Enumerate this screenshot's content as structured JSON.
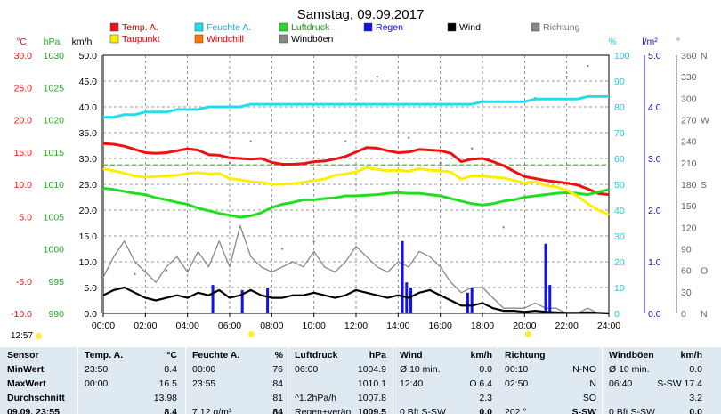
{
  "title": "Samstag, 09.09.2017",
  "clock": "12:57",
  "legend": [
    {
      "label": "Temp. A.",
      "color": "#ee1111"
    },
    {
      "label": "Feuchte A.",
      "color": "#22ddee"
    },
    {
      "label": "Luftdruck",
      "color": "#22dd22"
    },
    {
      "label": "Regen",
      "color": "#1111ee"
    },
    {
      "label": "Wind",
      "color": "#000000"
    },
    {
      "label": "Richtung",
      "color": "#888888"
    },
    {
      "label": "Taupunkt",
      "color": "#ffee00"
    },
    {
      "label": "Windchill",
      "color": "#ff7700"
    },
    {
      "label": "Windböen",
      "color": "#888888"
    }
  ],
  "axes": {
    "temp": {
      "unit": "°C",
      "color": "#ee1111",
      "ticks": [
        "30.0",
        "25.0",
        "20.0",
        "15.0",
        "10.0",
        "5.0",
        "-5.0",
        "-10.0"
      ]
    },
    "pressure": {
      "unit": "hPa",
      "color": "#22aa22",
      "ticks": [
        "1030",
        "1025",
        "1020",
        "1015",
        "1010",
        "1005",
        "1000",
        "995",
        "990"
      ]
    },
    "wind": {
      "unit": "km/h",
      "color": "#000000",
      "ticks": [
        "50.0",
        "45.0",
        "40.0",
        "35.0",
        "30.0",
        "25.0",
        "20.0",
        "15.0",
        "10.0",
        "5.0",
        "0.0"
      ]
    },
    "humidity": {
      "unit": "%",
      "color": "#22ccdd",
      "ticks": [
        "100",
        "90",
        "80",
        "70",
        "60",
        "50",
        "40",
        "30",
        "20",
        "10",
        "0"
      ]
    },
    "rain": {
      "unit": "l/m²",
      "color": "#1111cc",
      "ticks": [
        "5.0",
        "4.0",
        "3.0",
        "2.0",
        "1.0",
        "0.0"
      ]
    },
    "direction": {
      "unit": "°",
      "color": "#666666",
      "ticks": [
        "360",
        "330",
        "300",
        "270",
        "240",
        "210",
        "180",
        "150",
        "120",
        "90",
        "60",
        "30",
        "0"
      ],
      "labels": [
        "N",
        "",
        "",
        "W",
        "",
        "",
        "S",
        "",
        "",
        "",
        "O",
        "",
        "N"
      ]
    },
    "x": {
      "ticks": [
        "00:00",
        "02:00",
        "04:00",
        "06:00",
        "08:00",
        "10:00",
        "12:00",
        "14:00",
        "16:00",
        "18:00",
        "20:00",
        "22:00",
        "24:00"
      ]
    }
  },
  "chart_data": {
    "type": "line",
    "x_hours": [
      0,
      0.5,
      1,
      1.5,
      2,
      2.5,
      3,
      3.5,
      4,
      4.5,
      5,
      5.5,
      6,
      6.5,
      7,
      7.5,
      8,
      8.5,
      9,
      9.5,
      10,
      10.5,
      11,
      11.5,
      12,
      12.5,
      13,
      13.5,
      14,
      14.5,
      15,
      15.5,
      16,
      16.5,
      17,
      17.5,
      18,
      18.5,
      19,
      19.5,
      20,
      20.5,
      21,
      21.5,
      22,
      22.5,
      23,
      23.5,
      24
    ],
    "series": [
      {
        "name": "Temp. A.",
        "axis": "temp",
        "color": "#ee1111",
        "values": [
          16.3,
          16.2,
          15.9,
          15.4,
          14.9,
          14.8,
          14.9,
          15.2,
          15.5,
          15.3,
          14.6,
          14.5,
          14.1,
          14.0,
          13.9,
          14.0,
          13.4,
          13.1,
          13.1,
          13.2,
          13.5,
          13.6,
          13.9,
          14.3,
          15.0,
          15.7,
          15.6,
          15.2,
          14.9,
          15.0,
          15.4,
          15.3,
          15.2,
          14.8,
          13.5,
          13.9,
          14.0,
          13.5,
          12.9,
          12.0,
          11.2,
          10.9,
          10.6,
          10.4,
          10.2,
          9.9,
          9.3,
          8.6,
          8.4
        ]
      },
      {
        "name": "Feuchte A.",
        "axis": "humidity",
        "color": "#22ddee",
        "values": [
          76,
          76,
          77,
          77,
          78,
          78,
          78,
          79,
          79,
          79,
          80,
          80,
          80,
          80,
          81,
          81,
          81,
          81,
          81,
          81,
          81,
          81,
          81,
          81,
          81,
          81,
          81,
          81,
          81,
          81,
          81,
          81,
          81,
          81,
          81,
          81,
          82,
          82,
          82,
          82,
          82,
          83,
          83,
          83,
          83,
          83,
          84,
          84,
          84
        ]
      },
      {
        "name": "Luftdruck",
        "axis": "pressure",
        "color": "#22dd22",
        "values": [
          1009.4,
          1009.2,
          1008.9,
          1008.6,
          1008.4,
          1007.9,
          1007.6,
          1007.2,
          1006.9,
          1006.3,
          1005.9,
          1005.5,
          1005.2,
          1004.9,
          1005.1,
          1005.6,
          1006.4,
          1006.9,
          1007.2,
          1007.6,
          1007.6,
          1007.8,
          1007.9,
          1008.2,
          1008.2,
          1008.3,
          1008.4,
          1008.6,
          1008.7,
          1008.6,
          1008.6,
          1008.4,
          1008.2,
          1007.8,
          1007.4,
          1007.0,
          1006.8,
          1007.0,
          1007.4,
          1007.6,
          1008.0,
          1008.2,
          1008.4,
          1008.6,
          1008.7,
          1008.6,
          1008.4,
          1008.8,
          1009.2
        ]
      },
      {
        "name": "Taupunkt",
        "axis": "temp",
        "color": "#ffee00",
        "values": [
          12.4,
          12.1,
          11.7,
          11.3,
          11.1,
          11.2,
          11.3,
          11.4,
          11.7,
          11.8,
          11.6,
          11.7,
          10.9,
          10.7,
          10.4,
          10.3,
          10.0,
          10.0,
          10.1,
          10.3,
          10.6,
          10.8,
          11.4,
          11.6,
          11.9,
          12.6,
          12.3,
          12.1,
          12.2,
          12.0,
          12.4,
          12.2,
          12.1,
          11.9,
          10.8,
          11.3,
          11.3,
          11.1,
          11.0,
          10.6,
          10.2,
          10.4,
          9.8,
          9.6,
          9.1,
          8.2,
          7.0,
          6.0,
          5.3
        ]
      },
      {
        "name": "Wind",
        "axis": "wind",
        "color": "#000000",
        "values": [
          3.5,
          4.5,
          5.0,
          4.0,
          3.0,
          2.5,
          3.0,
          3.5,
          3.0,
          4.0,
          3.5,
          4.5,
          3.0,
          3.5,
          4.5,
          3.5,
          3.0,
          3.0,
          3.5,
          3.5,
          4.0,
          3.5,
          3.0,
          3.5,
          4.5,
          4.0,
          3.5,
          3.0,
          3.5,
          3.0,
          4.0,
          4.5,
          3.5,
          2.5,
          1.5,
          1.5,
          2.0,
          1.0,
          0.5,
          0.5,
          0.3,
          0.5,
          0.3,
          0.2,
          0.1,
          0.1,
          0.2,
          0.1,
          0.0
        ]
      },
      {
        "name": "Windböen",
        "axis": "wind",
        "color": "#888888",
        "values": [
          7,
          11,
          14,
          10,
          8,
          6,
          9,
          11,
          8,
          12,
          9,
          14,
          9,
          17,
          11,
          9,
          8,
          9,
          10,
          9,
          12,
          9,
          8,
          10,
          13,
          11,
          9,
          8,
          10,
          9,
          12,
          11,
          9,
          6,
          4,
          5,
          5,
          3,
          1,
          1,
          1,
          2,
          1,
          1,
          0,
          0,
          1,
          0,
          0
        ]
      }
    ],
    "threshold_line": {
      "axis": "temp",
      "value": 13.0,
      "color": "#22cc22"
    },
    "rain_bars": [
      {
        "hour": 5.2,
        "value": 0.55
      },
      {
        "hour": 6.6,
        "value": 0.45
      },
      {
        "hour": 7.8,
        "value": 0.5
      },
      {
        "hour": 14.2,
        "value": 1.4
      },
      {
        "hour": 14.4,
        "value": 0.6
      },
      {
        "hour": 14.6,
        "value": 0.5
      },
      {
        "hour": 17.3,
        "value": 0.4
      },
      {
        "hour": 17.5,
        "value": 0.5
      },
      {
        "hour": 21.0,
        "value": 1.35
      },
      {
        "hour": 21.2,
        "value": 0.55
      }
    ],
    "direction_marks": [
      {
        "hour": 1.5,
        "deg": 55
      },
      {
        "hour": 3.0,
        "deg": 60
      },
      {
        "hour": 4.5,
        "deg": 70
      },
      {
        "hour": 6.0,
        "deg": 210
      },
      {
        "hour": 7.0,
        "deg": 240
      },
      {
        "hour": 8.5,
        "deg": 90
      },
      {
        "hour": 10.0,
        "deg": 100
      },
      {
        "hour": 11.5,
        "deg": 240
      },
      {
        "hour": 13.0,
        "deg": 330
      },
      {
        "hour": 14.5,
        "deg": 245
      },
      {
        "hour": 16.0,
        "deg": 210
      },
      {
        "hour": 17.5,
        "deg": 230
      },
      {
        "hour": 19.0,
        "deg": 120
      },
      {
        "hour": 20.5,
        "deg": 300
      },
      {
        "hour": 22.0,
        "deg": 330
      },
      {
        "hour": 23.0,
        "deg": 345
      }
    ]
  },
  "table": {
    "sensor": {
      "title": "Sensor",
      "rows": [
        "MinWert",
        "MaxWert",
        "Durchschnitt",
        "09.09. 23:55"
      ]
    },
    "temp": {
      "title": "Temp. A.",
      "unit": "°C",
      "rows": [
        [
          "23:50",
          "8.4"
        ],
        [
          "00:00",
          "16.5"
        ],
        [
          "",
          "13.98"
        ],
        [
          "",
          "8.4"
        ]
      ]
    },
    "hum": {
      "title": "Feuchte A.",
      "unit": "%",
      "rows": [
        [
          "00:00",
          "76"
        ],
        [
          "23:55",
          "84"
        ],
        [
          "",
          "81"
        ],
        [
          "7.12 g/m³",
          "84"
        ]
      ]
    },
    "press": {
      "title": "Luftdruck",
      "unit": "hPa",
      "rows": [
        [
          "06:00",
          "1004.9"
        ],
        [
          "",
          "1010.1"
        ],
        [
          "^1.2hPa/h",
          "1007.8"
        ],
        [
          "Regen+verän",
          "1009.5"
        ]
      ]
    },
    "wind": {
      "title": "Wind",
      "unit": "km/h",
      "rows": [
        [
          "Ø 10 min.",
          "0.0"
        ],
        [
          "12:40",
          "O 6.4"
        ],
        [
          "",
          "2.3"
        ],
        [
          "0 Bft S-SW",
          "0.0"
        ]
      ]
    },
    "dir": {
      "title": "Richtung",
      "unit": "",
      "rows": [
        [
          "00:10",
          "N-NO"
        ],
        [
          "02:50",
          "N"
        ],
        [
          "",
          "SO"
        ],
        [
          "202 °",
          "S-SW"
        ]
      ]
    },
    "gust": {
      "title": "Windböen",
      "unit": "km/h",
      "rows": [
        [
          "Ø 10 min.",
          "0.0"
        ],
        [
          "06:40",
          "S-SW 17.4"
        ],
        [
          "",
          "3.2"
        ],
        [
          "0 Bft S-SW",
          "0.0"
        ]
      ]
    }
  }
}
